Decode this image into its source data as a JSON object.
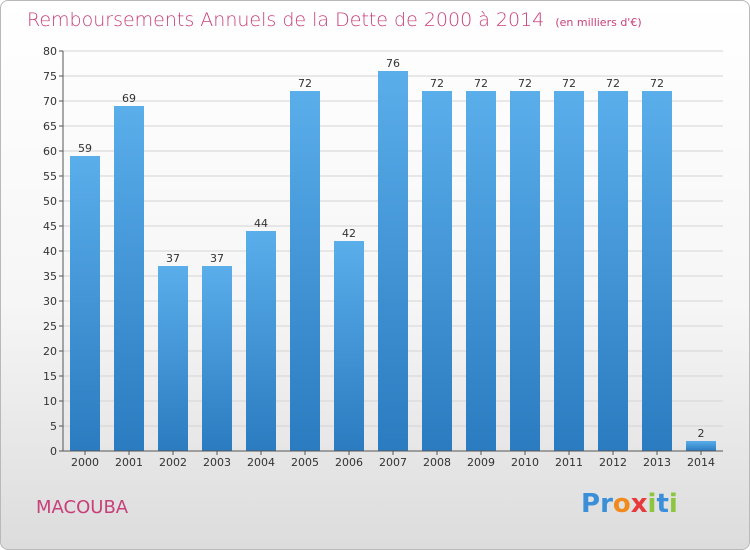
{
  "page": {
    "title": "Remboursements Annuels de la Dette de 2000 à 2014",
    "unit": "(en milliers d'€)",
    "commune": "MACOUBA",
    "brand": "Proxiti",
    "brand_letters": [
      {
        "ch": "P",
        "color": "#3a8fd8"
      },
      {
        "ch": "r",
        "color": "#3a8fd8"
      },
      {
        "ch": "o",
        "color": "#f08a1c"
      },
      {
        "ch": "x",
        "color": "#e83a3a"
      },
      {
        "ch": "i",
        "color": "#8cc63f"
      },
      {
        "ch": "t",
        "color": "#3a8fd8"
      },
      {
        "ch": "i",
        "color": "#8cc63f"
      }
    ]
  },
  "colors": {
    "bar_top": "#5aaeea",
    "bar_bottom": "#2b7bc0",
    "title": "#c8407a",
    "grid": "#d4d4d4",
    "axis": "#555555",
    "text": "#333333"
  },
  "chart_data": {
    "type": "bar",
    "title": "Remboursements Annuels de la Dette de 2000 à 2014",
    "subtitle": "(en milliers d'€)",
    "xlabel": "",
    "ylabel": "",
    "categories": [
      "2000",
      "2001",
      "2002",
      "2003",
      "2004",
      "2005",
      "2006",
      "2007",
      "2008",
      "2009",
      "2010",
      "2011",
      "2012",
      "2013",
      "2014"
    ],
    "values": [
      59,
      69,
      37,
      37,
      44,
      72,
      42,
      76,
      72,
      72,
      72,
      72,
      72,
      72,
      2
    ],
    "ylim": [
      0,
      80
    ],
    "ytick_step": 5,
    "grid": true,
    "data_labels": true
  }
}
